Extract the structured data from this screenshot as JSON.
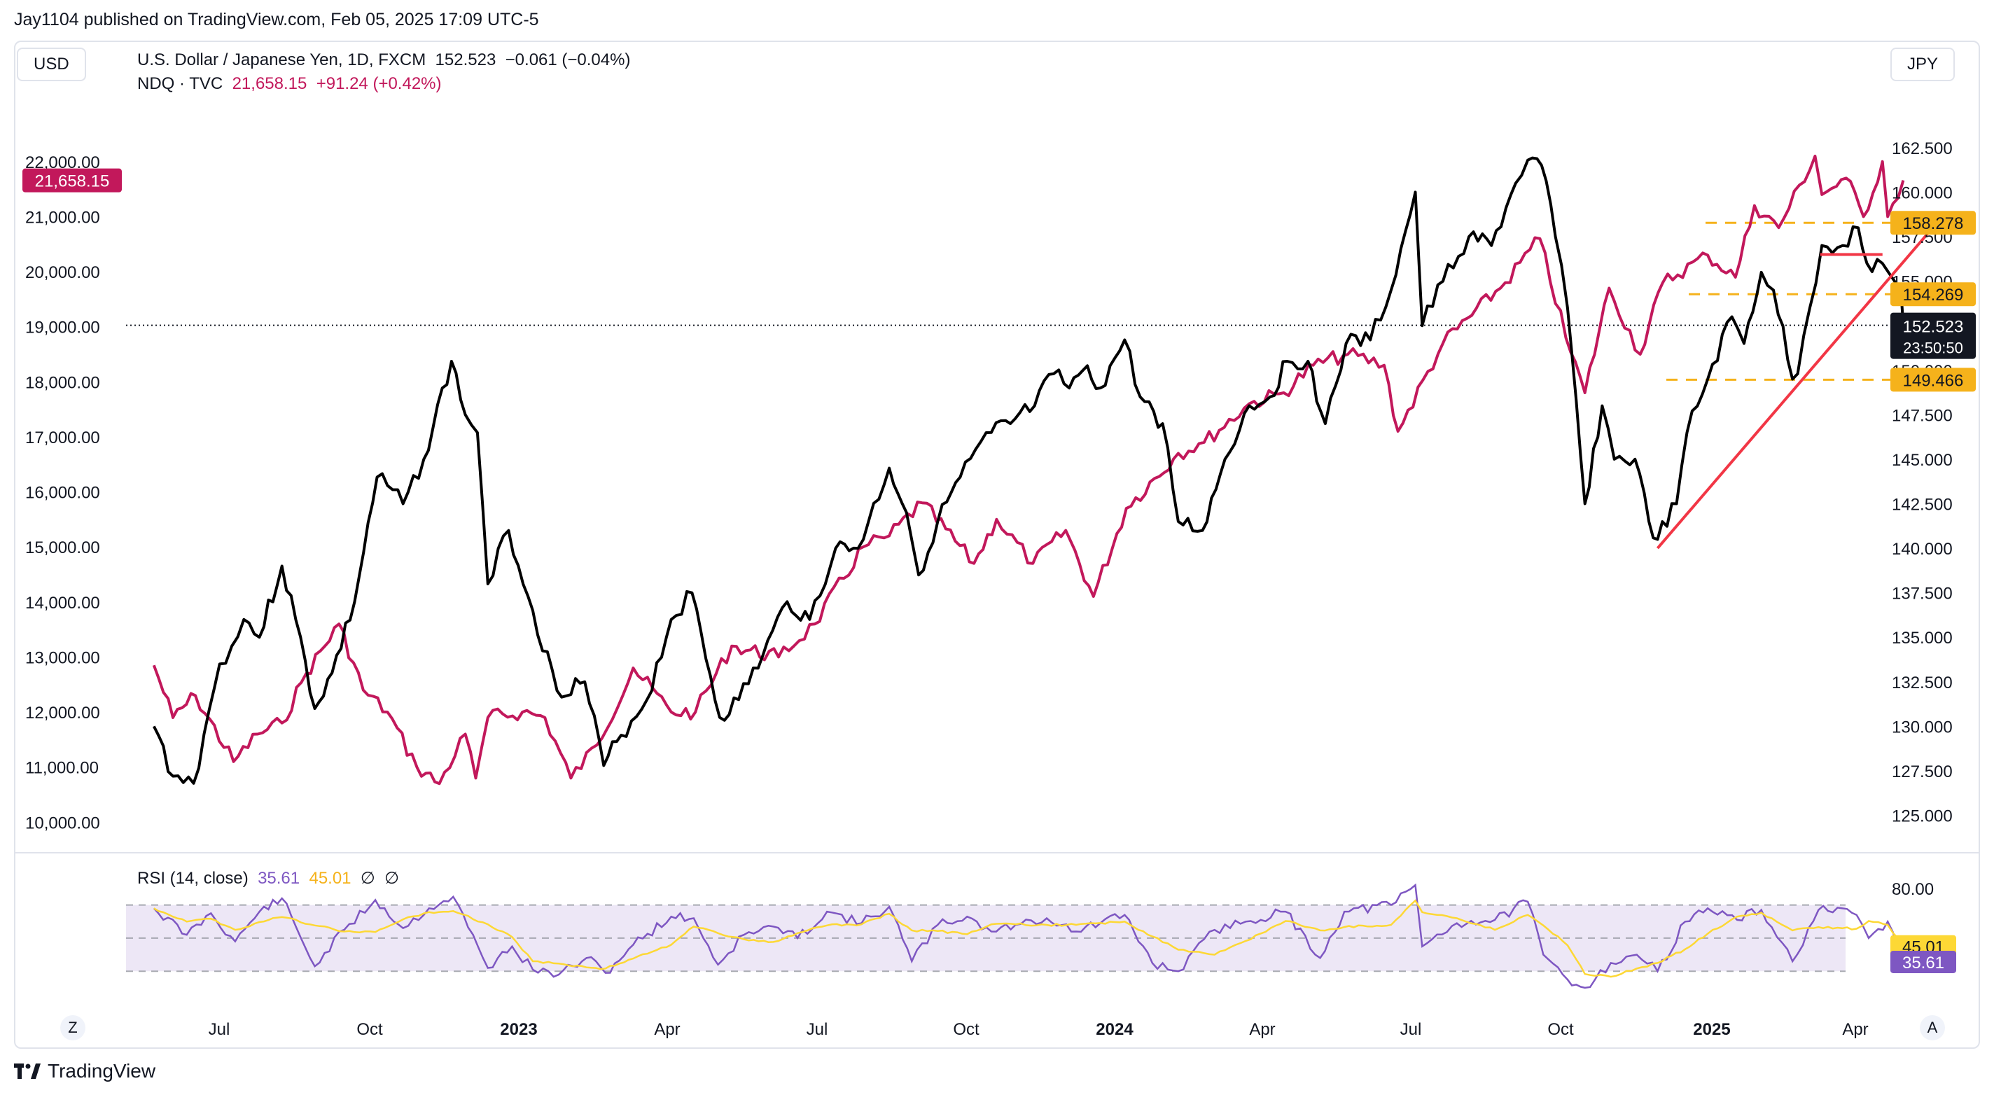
{
  "header": {
    "caption": "Jay1104 published on TradingView.com, Feb 05, 2025 17:09 UTC-5",
    "left_currency": "USD",
    "right_currency": "JPY"
  },
  "legend": {
    "main": {
      "symbol": "U.S. Dollar / Japanese Yen, 1D, FXCM",
      "price": "152.523",
      "change": "−0.061 (−0.04%)"
    },
    "compare": {
      "symbol": "NDQ · TVC",
      "price": "21,658.15",
      "change": "+91.24 (+0.42%)"
    },
    "rsi": {
      "label": "RSI (14, close)",
      "value": "35.61",
      "ma": "45.01",
      "na1": "∅",
      "na2": "∅"
    }
  },
  "badges": {
    "ndq_last": "21,658.15",
    "usdjpy_last": "152.523",
    "countdown": "23:50:50",
    "level_1": "158.278",
    "level_2": "154.269",
    "level_3": "149.466",
    "rsi_ma": "45.01",
    "rsi_value": "35.61"
  },
  "footer": {
    "brand": "TradingView",
    "btn_left": "Z",
    "btn_right": "A"
  },
  "colors": {
    "usdjpy": "#000000",
    "ndq": "#c2185b",
    "trend": "#f23645",
    "level": "#f5b21b",
    "rsi": "#7e57c2",
    "rsi_ma": "#fdd835",
    "rsi_band": "#ede7f6"
  },
  "chart_data": {
    "type": "line",
    "x_labels": [
      "Jul",
      "Oct",
      "2023",
      "Apr",
      "Jul",
      "Oct",
      "2024",
      "Apr",
      "Jul",
      "Oct",
      "2025",
      "Apr"
    ],
    "left_axis": {
      "unit": "USD",
      "ticks": [
        "22,000.00",
        "21,000.00",
        "20,000.00",
        "19,000.00",
        "18,000.00",
        "17,000.00",
        "16,000.00",
        "15,000.00",
        "14,000.00",
        "13,000.00",
        "12,000.00",
        "11,000.00",
        "10,000.00"
      ],
      "range": [
        9800,
        22900
      ]
    },
    "right_axis": {
      "unit": "JPY",
      "ticks": [
        "162.500",
        "160.000",
        "157.500",
        "155.000",
        "152.500",
        "150.000",
        "147.500",
        "145.000",
        "142.500",
        "140.000",
        "137.500",
        "135.000",
        "132.500",
        "130.000",
        "127.500",
        "125.000"
      ],
      "range": [
        124.0,
        164.5
      ]
    },
    "series": [
      {
        "name": "U.S. Dollar / Japanese Yen, 1D, FXCM",
        "axis": "right",
        "points": [
          [
            "2022-05-01",
            130.0
          ],
          [
            "2022-05-12",
            127.2
          ],
          [
            "2022-05-24",
            126.8
          ],
          [
            "2022-06-08",
            133.5
          ],
          [
            "2022-06-15",
            134.5
          ],
          [
            "2022-06-22",
            136.0
          ],
          [
            "2022-07-01",
            135.0
          ],
          [
            "2022-07-14",
            139.0
          ],
          [
            "2022-07-22",
            136.0
          ],
          [
            "2022-08-02",
            131.0
          ],
          [
            "2022-08-12",
            133.0
          ],
          [
            "2022-08-25",
            137.0
          ],
          [
            "2022-09-07",
            144.0
          ],
          [
            "2022-09-22",
            142.5
          ],
          [
            "2022-10-04",
            145.0
          ],
          [
            "2022-10-20",
            150.5
          ],
          [
            "2022-10-28",
            147.5
          ],
          [
            "2022-11-04",
            146.5
          ],
          [
            "2022-11-10",
            138.0
          ],
          [
            "2022-11-22",
            141.0
          ],
          [
            "2022-12-06",
            136.5
          ],
          [
            "2022-12-20",
            132.0
          ],
          [
            "2023-01-05",
            132.5
          ],
          [
            "2023-01-16",
            127.8
          ],
          [
            "2023-01-26",
            129.5
          ],
          [
            "2023-02-10",
            131.5
          ],
          [
            "2023-02-24",
            136.0
          ],
          [
            "2023-03-08",
            137.5
          ],
          [
            "2023-03-24",
            130.5
          ],
          [
            "2023-04-04",
            131.5
          ],
          [
            "2023-04-18",
            134.0
          ],
          [
            "2023-05-02",
            137.0
          ],
          [
            "2023-05-15",
            136.0
          ],
          [
            "2023-05-30",
            140.0
          ],
          [
            "2023-06-12",
            140.0
          ],
          [
            "2023-06-30",
            144.5
          ],
          [
            "2023-07-10",
            142.0
          ],
          [
            "2023-07-17",
            138.5
          ],
          [
            "2023-07-28",
            141.5
          ],
          [
            "2023-08-10",
            144.0
          ],
          [
            "2023-08-28",
            146.5
          ],
          [
            "2023-09-08",
            147.0
          ],
          [
            "2023-09-22",
            148.0
          ],
          [
            "2023-10-03",
            149.8
          ],
          [
            "2023-10-12",
            149.0
          ],
          [
            "2023-10-20",
            150.0
          ],
          [
            "2023-10-30",
            149.0
          ],
          [
            "2023-11-13",
            151.7
          ],
          [
            "2023-11-22",
            148.5
          ],
          [
            "2023-12-05",
            147.0
          ],
          [
            "2023-12-14",
            141.5
          ],
          [
            "2023-12-28",
            141.0
          ],
          [
            "2024-01-10",
            145.0
          ],
          [
            "2024-01-24",
            148.0
          ],
          [
            "2024-02-05",
            148.5
          ],
          [
            "2024-02-15",
            150.5
          ],
          [
            "2024-02-27",
            150.5
          ],
          [
            "2024-03-08",
            147.0
          ],
          [
            "2024-03-20",
            151.5
          ],
          [
            "2024-04-03",
            151.7
          ],
          [
            "2024-04-15",
            154.5
          ],
          [
            "2024-04-29",
            160.0
          ],
          [
            "2024-05-03",
            152.5
          ],
          [
            "2024-05-15",
            155.0
          ],
          [
            "2024-05-30",
            157.5
          ],
          [
            "2024-06-12",
            157.0
          ],
          [
            "2024-06-26",
            160.5
          ],
          [
            "2024-07-03",
            161.8
          ],
          [
            "2024-07-11",
            161.5
          ],
          [
            "2024-07-19",
            157.5
          ],
          [
            "2024-07-26",
            153.5
          ],
          [
            "2024-08-05",
            142.5
          ],
          [
            "2024-08-15",
            148.0
          ],
          [
            "2024-08-22",
            145.0
          ],
          [
            "2024-09-03",
            145.0
          ],
          [
            "2024-09-11",
            141.5
          ],
          [
            "2024-09-16",
            140.5
          ],
          [
            "2024-09-27",
            142.5
          ],
          [
            "2024-10-03",
            146.5
          ],
          [
            "2024-10-15",
            149.5
          ],
          [
            "2024-10-29",
            153.0
          ],
          [
            "2024-11-05",
            151.5
          ],
          [
            "2024-11-15",
            155.5
          ],
          [
            "2024-11-22",
            154.5
          ],
          [
            "2024-12-03",
            149.5
          ],
          [
            "2024-12-06",
            149.8
          ],
          [
            "2024-12-13",
            153.5
          ],
          [
            "2024-12-20",
            157.0
          ],
          [
            "2025-01-01",
            157.0
          ],
          [
            "2025-01-10",
            158.0
          ],
          [
            "2025-01-15",
            156.0
          ],
          [
            "2025-01-24",
            156.0
          ],
          [
            "2025-01-31",
            155.0
          ],
          [
            "2025-02-04",
            154.0
          ],
          [
            "2025-02-05",
            152.523
          ]
        ]
      },
      {
        "name": "NDQ · TVC",
        "axis": "left",
        "points": [
          [
            "2022-05-01",
            12850
          ],
          [
            "2022-05-12",
            11900
          ],
          [
            "2022-05-25",
            12300
          ],
          [
            "2022-06-16",
            11100
          ],
          [
            "2022-06-30",
            11600
          ],
          [
            "2022-07-14",
            11800
          ],
          [
            "2022-07-28",
            12700
          ],
          [
            "2022-08-16",
            13600
          ],
          [
            "2022-08-30",
            12400
          ],
          [
            "2022-09-13",
            12000
          ],
          [
            "2022-09-30",
            11000
          ],
          [
            "2022-10-13",
            10700
          ],
          [
            "2022-10-28",
            11600
          ],
          [
            "2022-11-03",
            10800
          ],
          [
            "2022-11-10",
            11900
          ],
          [
            "2022-11-30",
            12000
          ],
          [
            "2022-12-13",
            11900
          ],
          [
            "2022-12-28",
            10800
          ],
          [
            "2023-01-12",
            11400
          ],
          [
            "2023-02-02",
            12800
          ],
          [
            "2023-02-24",
            12000
          ],
          [
            "2023-03-10",
            12000
          ],
          [
            "2023-03-31",
            13200
          ],
          [
            "2023-04-27",
            13000
          ],
          [
            "2023-05-18",
            13600
          ],
          [
            "2023-06-15",
            15000
          ],
          [
            "2023-06-30",
            15200
          ],
          [
            "2023-07-19",
            15800
          ],
          [
            "2023-08-18",
            14700
          ],
          [
            "2023-08-31",
            15500
          ],
          [
            "2023-09-21",
            14700
          ],
          [
            "2023-10-10",
            15300
          ],
          [
            "2023-10-26",
            14100
          ],
          [
            "2023-11-14",
            15700
          ],
          [
            "2023-12-14",
            16700
          ],
          [
            "2023-12-29",
            16900
          ],
          [
            "2024-01-24",
            17600
          ],
          [
            "2024-02-13",
            17800
          ],
          [
            "2024-03-01",
            18300
          ],
          [
            "2024-03-21",
            18500
          ],
          [
            "2024-04-11",
            18300
          ],
          [
            "2024-04-19",
            17100
          ],
          [
            "2024-05-15",
            18700
          ],
          [
            "2024-06-20",
            19800
          ],
          [
            "2024-07-10",
            20600
          ],
          [
            "2024-07-25",
            18800
          ],
          [
            "2024-08-05",
            17800
          ],
          [
            "2024-08-19",
            19700
          ],
          [
            "2024-09-06",
            18500
          ],
          [
            "2024-09-19",
            19800
          ],
          [
            "2024-10-15",
            20300
          ],
          [
            "2024-10-31",
            19900
          ],
          [
            "2024-11-11",
            21200
          ],
          [
            "2024-11-25",
            20800
          ],
          [
            "2024-12-16",
            22100
          ],
          [
            "2024-12-20",
            21400
          ],
          [
            "2025-01-03",
            21700
          ],
          [
            "2025-01-13",
            21000
          ],
          [
            "2025-01-24",
            22000
          ],
          [
            "2025-01-27",
            21000
          ],
          [
            "2025-02-05",
            21658.15
          ]
        ]
      }
    ],
    "levels": [
      158.278,
      154.269,
      149.466
    ],
    "trendlines": [
      {
        "from": [
          "2024-09-16",
          140.0
        ],
        "to": [
          "2025-02-22",
          158.0
        ]
      },
      {
        "from": [
          "2024-12-19",
          156.5
        ],
        "to": [
          "2025-01-24",
          156.5
        ]
      }
    ],
    "rsi": {
      "name": "RSI (14, close)",
      "upper": 70,
      "middle": 50,
      "lower": 30,
      "axis_tick": "80.00",
      "range": [
        17,
        88
      ],
      "values": [
        [
          "2022-05-01",
          68
        ],
        [
          "2022-05-20",
          52
        ],
        [
          "2022-06-03",
          65
        ],
        [
          "2022-06-17",
          48
        ],
        [
          "2022-07-01",
          66
        ],
        [
          "2022-07-14",
          74
        ],
        [
          "2022-08-02",
          33
        ],
        [
          "2022-08-19",
          55
        ],
        [
          "2022-09-06",
          73
        ],
        [
          "2022-09-22",
          56
        ],
        [
          "2022-10-07",
          68
        ],
        [
          "2022-10-21",
          75
        ],
        [
          "2022-11-10",
          32
        ],
        [
          "2022-11-24",
          45
        ],
        [
          "2022-12-06",
          31
        ],
        [
          "2022-12-21",
          28
        ],
        [
          "2023-01-06",
          38
        ],
        [
          "2023-01-17",
          29
        ],
        [
          "2023-02-02",
          46
        ],
        [
          "2023-02-24",
          63
        ],
        [
          "2023-03-09",
          62
        ],
        [
          "2023-03-23",
          34
        ],
        [
          "2023-04-07",
          52
        ],
        [
          "2023-04-24",
          57
        ],
        [
          "2023-05-08",
          50
        ],
        [
          "2023-05-25",
          66
        ],
        [
          "2023-06-14",
          59
        ],
        [
          "2023-06-30",
          69
        ],
        [
          "2023-07-13",
          36
        ],
        [
          "2023-07-28",
          58
        ],
        [
          "2023-08-14",
          63
        ],
        [
          "2023-08-28",
          54
        ],
        [
          "2023-09-11",
          58
        ],
        [
          "2023-09-29",
          62
        ],
        [
          "2023-10-16",
          54
        ],
        [
          "2023-11-13",
          64
        ],
        [
          "2023-11-29",
          35
        ],
        [
          "2023-12-14",
          30
        ],
        [
          "2024-01-04",
          55
        ],
        [
          "2024-01-22",
          60
        ],
        [
          "2024-02-14",
          66
        ],
        [
          "2024-03-05",
          38
        ],
        [
          "2024-03-19",
          66
        ],
        [
          "2024-04-15",
          70
        ],
        [
          "2024-04-29",
          82
        ],
        [
          "2024-05-03",
          45
        ],
        [
          "2024-05-23",
          59
        ],
        [
          "2024-06-14",
          61
        ],
        [
          "2024-07-03",
          72
        ],
        [
          "2024-07-12",
          40
        ],
        [
          "2024-07-26",
          25
        ],
        [
          "2024-08-05",
          20
        ],
        [
          "2024-08-20",
          35
        ],
        [
          "2024-09-04",
          40
        ],
        [
          "2024-09-16",
          30
        ],
        [
          "2024-10-02",
          60
        ],
        [
          "2024-10-15",
          68
        ],
        [
          "2024-11-01",
          61
        ],
        [
          "2024-11-15",
          67
        ],
        [
          "2024-12-03",
          36
        ],
        [
          "2024-12-18",
          67
        ],
        [
          "2025-01-09",
          64
        ],
        [
          "2025-01-16",
          50
        ],
        [
          "2025-01-27",
          60
        ],
        [
          "2025-02-05",
          35.61
        ]
      ]
    }
  }
}
